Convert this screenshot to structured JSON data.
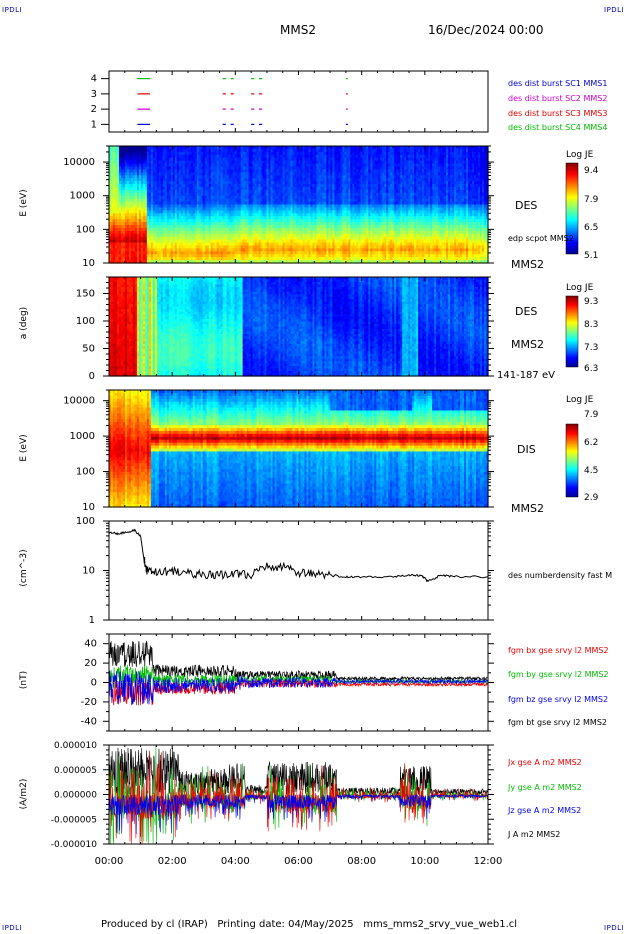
{
  "header": {
    "corner_tl": "IPDLI",
    "corner_tr": "IPDLI",
    "corner_bl": "IPDLI",
    "corner_br": "IPDLI",
    "spacecraft": "MMS2",
    "date": "16/Dec/2024 00:00"
  },
  "footer": {
    "produced": "Produced by cl (IRAP)",
    "printing": "Printing date: 04/May/2025",
    "script": "mms_mms2_srvy_vue_web1.cl"
  },
  "x_axis": {
    "ticks": [
      "00:00",
      "02:00",
      "04:00",
      "06:00",
      "08:00",
      "10:00",
      "12:00"
    ],
    "hours": [
      0,
      2,
      4,
      6,
      8,
      10,
      12
    ]
  },
  "chart_data": [
    {
      "type": "scatter",
      "name": "burst-availability",
      "ylim": [
        0.5,
        4.5
      ],
      "y_ticks": [
        "4",
        "3",
        "2",
        "1"
      ],
      "legend": [
        {
          "label": "des dist burst SC1 MMS1",
          "color": "#0000cc",
          "y": 1
        },
        {
          "label": "des dist burst SC2 MMS2",
          "color": "#cc00cc",
          "y": 2
        },
        {
          "label": "des dist burst SC3 MMS3",
          "color": "#dd0000",
          "y": 3
        },
        {
          "label": "des dist burst SC4 MMS4",
          "color": "#00bb00",
          "y": 4
        }
      ],
      "intervals_hours": [
        [
          0.9,
          1.3
        ],
        [
          3.6,
          3.7
        ],
        [
          3.85,
          3.95
        ],
        [
          4.5,
          4.6
        ],
        [
          4.75,
          4.85
        ],
        [
          7.5,
          7.55
        ]
      ]
    },
    {
      "type": "heatmap",
      "name": "des-energy",
      "ylabel": "E (eV)",
      "y_ticks": [
        "10000",
        "1000",
        "100",
        "10"
      ],
      "ylim": [
        10,
        30000
      ],
      "right_labels": [
        "DES",
        "edp scpot MMS2",
        "MMS2"
      ],
      "colorbar": {
        "title": "Log JE",
        "ticks": [
          "9.4",
          "7.9",
          "6.5",
          "5.1"
        ],
        "range": [
          5.1,
          9.4
        ]
      }
    },
    {
      "type": "heatmap",
      "name": "des-pitch-angle",
      "ylabel": "a (deg)",
      "y_ticks": [
        "150",
        "100",
        "50",
        "0"
      ],
      "ylim": [
        0,
        180
      ],
      "right_labels": [
        "DES",
        "MMS2",
        "141-187 eV"
      ],
      "colorbar": {
        "title": "Log JE",
        "ticks": [
          "9.3",
          "8.3",
          "7.3",
          "6.3"
        ],
        "range": [
          6.3,
          9.3
        ]
      }
    },
    {
      "type": "heatmap",
      "name": "dis-energy",
      "ylabel": "E (eV)",
      "y_ticks": [
        "10000",
        "1000",
        "100",
        "10"
      ],
      "ylim": [
        10,
        20000
      ],
      "right_labels": [
        "DIS",
        "MMS2"
      ],
      "colorbar": {
        "title": "Log JE",
        "ticks": [
          "7.9",
          "6.2",
          "4.5",
          "2.9"
        ],
        "range": [
          2.9,
          7.9
        ]
      }
    },
    {
      "type": "line",
      "name": "density",
      "ylabel": "(cm^-3)",
      "y_ticks": [
        "100",
        "10",
        "1"
      ],
      "ylim": [
        1,
        100
      ],
      "yscale": "log",
      "series": [
        {
          "name": "des numberdensity fast M",
          "color": "#000000",
          "x": [
            0,
            0.3,
            0.6,
            0.8,
            1.0,
            1.1,
            1.2,
            1.5,
            2.0,
            2.5,
            3.0,
            3.5,
            4.0,
            4.5,
            5.0,
            5.5,
            6.0,
            6.5,
            7.0,
            7.5,
            8.0,
            9.0,
            9.5,
            9.9,
            10.1,
            10.5,
            11.0,
            12.0
          ],
          "y": [
            60,
            55,
            60,
            65,
            50,
            18,
            10,
            9,
            10,
            9,
            8,
            8,
            9,
            8,
            12,
            12,
            9,
            9,
            8,
            7.5,
            7.5,
            7.5,
            8,
            8,
            6,
            8,
            7.5,
            7.5
          ]
        }
      ]
    },
    {
      "type": "line",
      "name": "magnetic-field",
      "ylabel": "(nT)",
      "y_ticks": [
        "40",
        "20",
        "0",
        "-20",
        "-40"
      ],
      "ylim": [
        -50,
        50
      ],
      "series": [
        {
          "name": "fgm bx gse srvy l2 MMS2",
          "color": "#ee0000"
        },
        {
          "name": "fgm by gse srvy l2 MMS2",
          "color": "#00bb00"
        },
        {
          "name": "fgm bz gse srvy l2 MMS2",
          "color": "#0000ee"
        },
        {
          "name": "fgm bt gse srvy l2 MMS2",
          "color": "#000000"
        }
      ]
    },
    {
      "type": "line",
      "name": "current-density",
      "ylabel": "(A/m2)",
      "y_ticks": [
        "0.000010",
        "0.000005",
        "0.000000",
        "-0.000005",
        "-0.000010"
      ],
      "ylim": [
        -1e-05,
        1e-05
      ],
      "series": [
        {
          "name": "Jx gse A m2 MMS2",
          "color": "#ee0000"
        },
        {
          "name": "Jy gse A m2 MMS2",
          "color": "#00bb00"
        },
        {
          "name": "Jz gse A m2 MMS2",
          "color": "#0000ee"
        },
        {
          "name": "J A m2 MMS2",
          "color": "#000000"
        }
      ]
    }
  ]
}
